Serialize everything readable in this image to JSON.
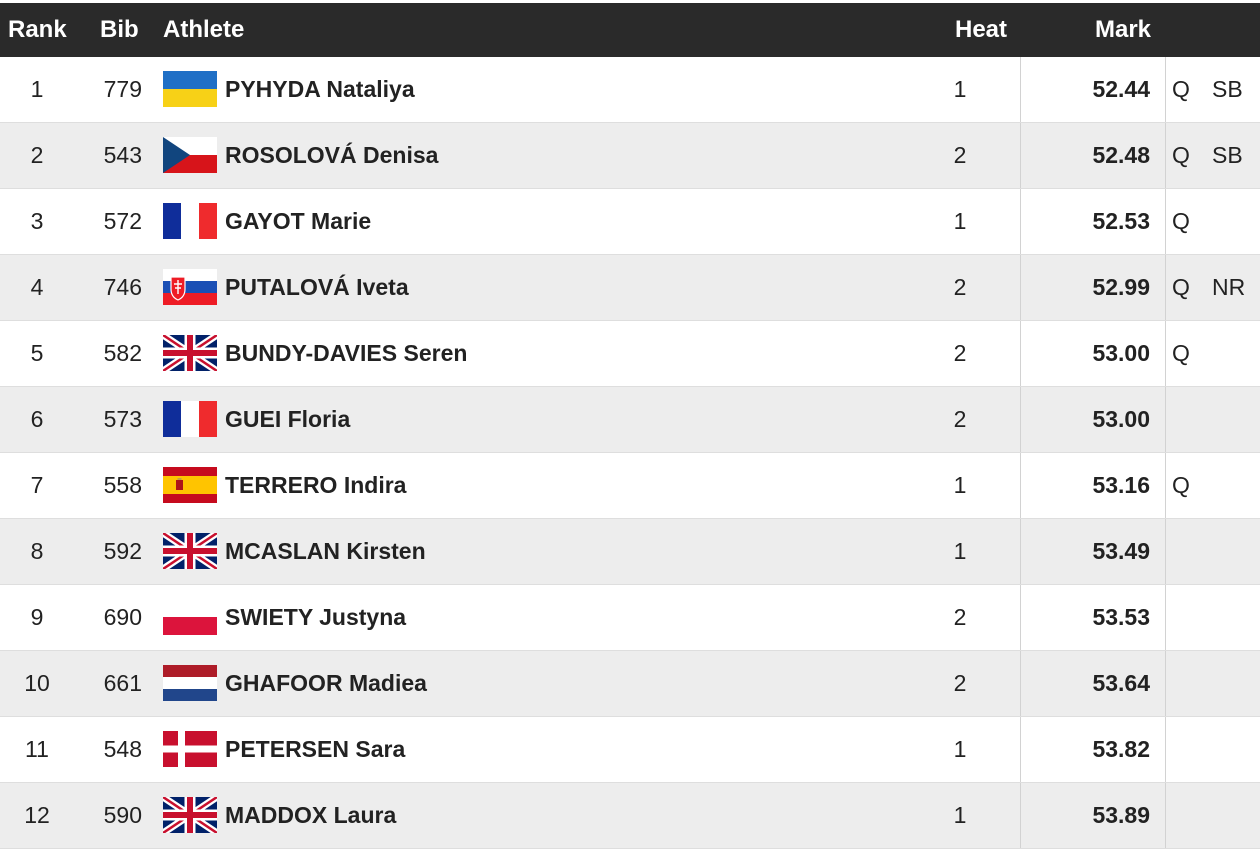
{
  "header": {
    "rank": "Rank",
    "bib": "Bib",
    "athlete": "Athlete",
    "heat": "Heat",
    "mark": "Mark"
  },
  "colors": {
    "header_bg": "#2a2a2a",
    "alt_row_bg": "#ededed"
  },
  "rows": [
    {
      "rank": "1",
      "bib": "779",
      "flag": "ukraine-flag-icon",
      "athlete": "PYHYDA Nataliya",
      "heat": "1",
      "mark": "52.44",
      "q": "Q",
      "record": "SB"
    },
    {
      "rank": "2",
      "bib": "543",
      "flag": "czech-flag-icon",
      "athlete": "ROSOLOVÁ Denisa",
      "heat": "2",
      "mark": "52.48",
      "q": "Q",
      "record": "SB"
    },
    {
      "rank": "3",
      "bib": "572",
      "flag": "france-flag-icon",
      "athlete": "GAYOT Marie",
      "heat": "1",
      "mark": "52.53",
      "q": "Q",
      "record": ""
    },
    {
      "rank": "4",
      "bib": "746",
      "flag": "slovakia-flag-icon",
      "athlete": "PUTALOVÁ Iveta",
      "heat": "2",
      "mark": "52.99",
      "q": "Q",
      "record": "NR"
    },
    {
      "rank": "5",
      "bib": "582",
      "flag": "uk-flag-icon",
      "athlete": "BUNDY-DAVIES Seren",
      "heat": "2",
      "mark": "53.00",
      "q": "Q",
      "record": ""
    },
    {
      "rank": "6",
      "bib": "573",
      "flag": "france-flag-icon",
      "athlete": "GUEI Floria",
      "heat": "2",
      "mark": "53.00",
      "q": "",
      "record": ""
    },
    {
      "rank": "7",
      "bib": "558",
      "flag": "spain-flag-icon",
      "athlete": "TERRERO Indira",
      "heat": "1",
      "mark": "53.16",
      "q": "Q",
      "record": ""
    },
    {
      "rank": "8",
      "bib": "592",
      "flag": "uk-flag-icon",
      "athlete": "MCASLAN Kirsten",
      "heat": "1",
      "mark": "53.49",
      "q": "",
      "record": ""
    },
    {
      "rank": "9",
      "bib": "690",
      "flag": "poland-flag-icon",
      "athlete": "SWIETY Justyna",
      "heat": "2",
      "mark": "53.53",
      "q": "",
      "record": ""
    },
    {
      "rank": "10",
      "bib": "661",
      "flag": "netherlands-flag-icon",
      "athlete": "GHAFOOR Madiea",
      "heat": "2",
      "mark": "53.64",
      "q": "",
      "record": ""
    },
    {
      "rank": "11",
      "bib": "548",
      "flag": "denmark-flag-icon",
      "athlete": "PETERSEN Sara",
      "heat": "1",
      "mark": "53.82",
      "q": "",
      "record": ""
    },
    {
      "rank": "12",
      "bib": "590",
      "flag": "uk-flag-icon",
      "athlete": "MADDOX Laura",
      "heat": "1",
      "mark": "53.89",
      "q": "",
      "record": ""
    }
  ]
}
